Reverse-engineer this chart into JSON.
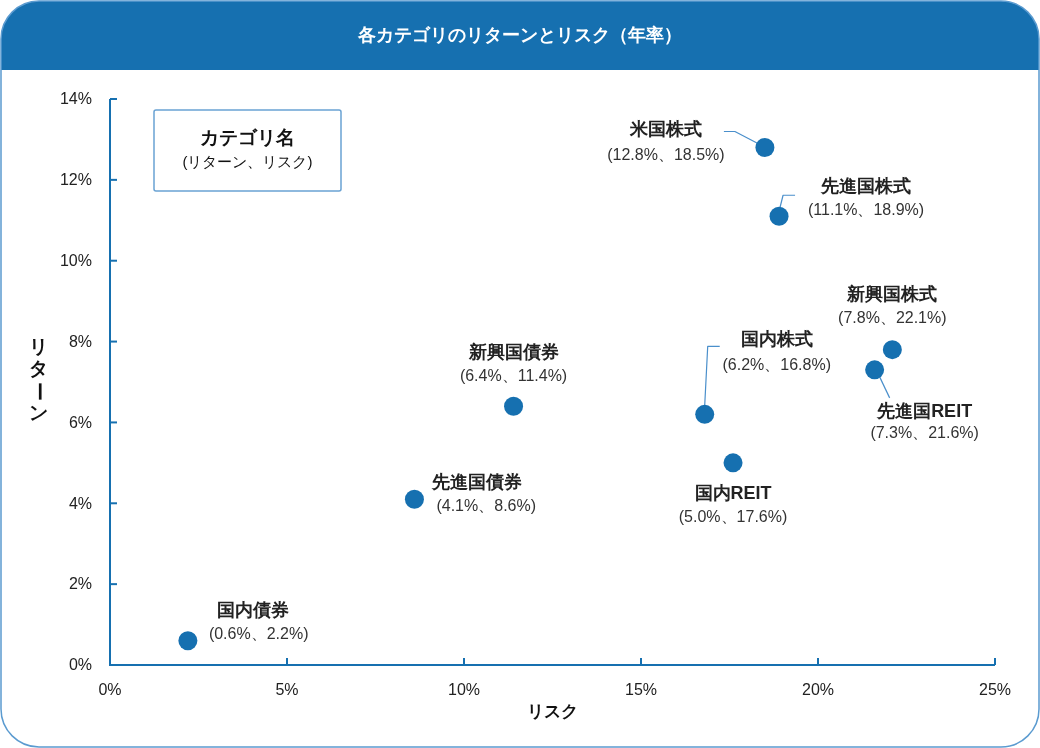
{
  "chart_data": {
    "type": "scatter",
    "title": "各カテゴリのリターンとリスク（年率）",
    "xlabel": "リスク",
    "ylabel": "リターン",
    "annotations": [
      "カテゴリ名",
      "(リターン、リスク)"
    ],
    "xlim": [
      0,
      25
    ],
    "xticks": [
      {
        "value": 0,
        "label": "0%"
      },
      {
        "value": 5,
        "label": "5%"
      },
      {
        "value": 10,
        "label": "10%"
      },
      {
        "value": 15,
        "label": "15%"
      },
      {
        "value": 20,
        "label": "20%"
      },
      {
        "value": 25,
        "label": "25%"
      }
    ],
    "ylim": [
      0,
      14
    ],
    "yticks": [
      {
        "value": 0,
        "label": "0%"
      },
      {
        "value": 2,
        "label": "2%"
      },
      {
        "value": 4,
        "label": "4%"
      },
      {
        "value": 6,
        "label": "6%"
      },
      {
        "value": 8,
        "label": "8%"
      },
      {
        "value": 10,
        "label": "10%"
      },
      {
        "value": 12,
        "label": "12%"
      },
      {
        "value": 14,
        "label": "14%"
      }
    ],
    "marker": "circle",
    "series": [
      {
        "name": "米国株式",
        "color": "#1670b0",
        "x": [
          18.5
        ],
        "values": [
          12.8
        ],
        "value_labels": [
          "(12.8%、18.5%)"
        ]
      },
      {
        "name": "先進国株式",
        "color": "#1670b0",
        "x": [
          18.9
        ],
        "values": [
          11.1
        ],
        "value_labels": [
          "(11.1%、18.9%)"
        ]
      },
      {
        "name": "新興国株式",
        "color": "#1670b0",
        "x": [
          22.1
        ],
        "values": [
          7.8
        ],
        "value_labels": [
          "(7.8%、22.1%)"
        ]
      },
      {
        "name": "国内株式",
        "color": "#1670b0",
        "x": [
          16.8
        ],
        "values": [
          6.2
        ],
        "value_labels": [
          "(6.2%、16.8%)"
        ]
      },
      {
        "name": "先進国REIT",
        "color": "#1670b0",
        "x": [
          21.6
        ],
        "values": [
          7.3
        ],
        "value_labels": [
          "(7.3%、21.6%)"
        ]
      },
      {
        "name": "国内REIT",
        "color": "#1670b0",
        "x": [
          17.6
        ],
        "values": [
          5.0
        ],
        "value_labels": [
          "(5.0%、17.6%)"
        ]
      },
      {
        "name": "新興国債券",
        "color": "#1670b0",
        "x": [
          11.4
        ],
        "values": [
          6.4
        ],
        "value_labels": [
          "(6.4%、11.4%)"
        ]
      },
      {
        "name": "先進国債券",
        "color": "#1670b0",
        "x": [
          8.6
        ],
        "values": [
          4.1
        ],
        "value_labels": [
          "(4.1%、8.6%)"
        ]
      },
      {
        "name": "国内債券",
        "color": "#1670b0",
        "x": [
          2.2
        ],
        "values": [
          0.6
        ],
        "value_labels": [
          "(0.6%、2.2%)"
        ]
      }
    ]
  }
}
